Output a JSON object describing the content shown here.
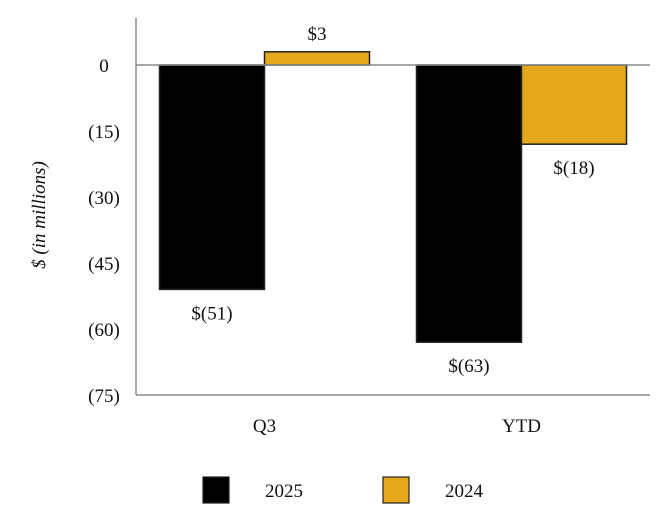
{
  "chart_data": {
    "type": "bar",
    "categories": [
      "Q3",
      "YTD"
    ],
    "series": [
      {
        "name": "2025",
        "values": [
          -51,
          -63
        ],
        "labels": [
          "$(51)",
          "$(63)"
        ],
        "color": "#000000"
      },
      {
        "name": "2024",
        "values": [
          3,
          -18
        ],
        "labels": [
          "$3",
          "$(18)"
        ],
        "color": "#E5A81C"
      }
    ],
    "ylabel": "$ (in millions)",
    "ylim": [
      -75,
      0
    ],
    "yticks": [
      0,
      -15,
      -30,
      -45,
      -60,
      -75
    ],
    "ytick_labels": [
      "0",
      "(15)",
      "(30)",
      "(45)",
      "(60)",
      "(75)"
    ],
    "grid": false,
    "legend": "bottom"
  }
}
